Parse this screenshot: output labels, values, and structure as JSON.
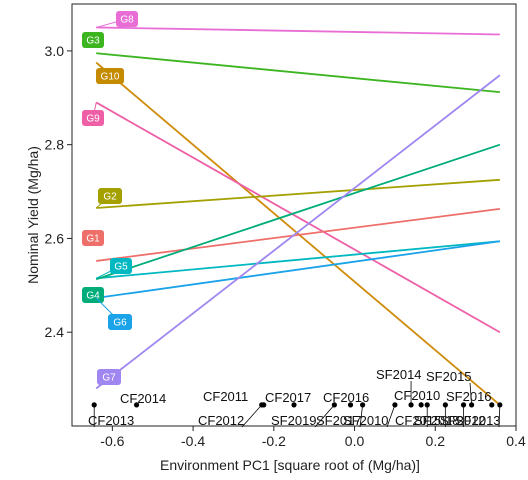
{
  "chart_data": {
    "type": "line",
    "xlabel": "Environment PC1 [square root of  (Mg/ha)]",
    "ylabel": "Nominal Yield (Mg/ha)",
    "xlim": [
      -0.7,
      0.4
    ],
    "ylim": [
      2.2,
      3.1
    ],
    "x_ticks": [
      -0.6,
      -0.4,
      -0.2,
      0.0,
      0.2,
      0.4
    ],
    "x_tick_labels": [
      "-0.6",
      "-0.4",
      "-0.2",
      "0.0",
      "0.2",
      "0.4"
    ],
    "y_ticks": [
      2.4,
      2.6,
      2.8,
      3.0
    ],
    "y_tick_labels": [
      "2.4",
      "2.6",
      "2.8",
      "3.0"
    ],
    "grid": false,
    "series": [
      {
        "name": "G8",
        "color": "#e86ed6",
        "x": [
          -0.64,
          0.36
        ],
        "y": [
          3.05,
          3.035
        ]
      },
      {
        "name": "G3",
        "color": "#3cb521",
        "x": [
          -0.64,
          0.36
        ],
        "y": [
          2.995,
          2.912
        ]
      },
      {
        "name": "G10",
        "color": "#cf8b0a",
        "x": [
          -0.64,
          0.36
        ],
        "y": [
          2.975,
          2.245
        ]
      },
      {
        "name": "G9",
        "color": "#ee5fa6",
        "x": [
          -0.64,
          0.36
        ],
        "y": [
          2.89,
          2.4
        ]
      },
      {
        "name": "G2",
        "color": "#a3a000",
        "x": [
          -0.64,
          0.36
        ],
        "y": [
          2.665,
          2.725
        ]
      },
      {
        "name": "G1",
        "color": "#ee6f6a",
        "x": [
          -0.64,
          0.36
        ],
        "y": [
          2.552,
          2.663
        ]
      },
      {
        "name": "G5",
        "color": "#00b8c1",
        "x": [
          -0.64,
          0.36
        ],
        "y": [
          2.515,
          2.594
        ]
      },
      {
        "name": "G4",
        "color": "#00ad7a",
        "x": [
          -0.64,
          0.36
        ],
        "y": [
          2.513,
          2.8
        ]
      },
      {
        "name": "G6",
        "color": "#1aa3e8",
        "x": [
          -0.64,
          0.36
        ],
        "y": [
          2.473,
          2.594
        ]
      },
      {
        "name": "G7",
        "color": "#9f86f0",
        "x": [
          -0.64,
          0.36
        ],
        "y": [
          2.28,
          2.948
        ]
      }
    ],
    "environments": [
      {
        "name": "CF2013",
        "x": -0.645
      },
      {
        "name": "CF2014",
        "x": -0.54
      },
      {
        "name": "CF2012",
        "x": -0.23
      },
      {
        "name": "CF2011",
        "x": -0.225
      },
      {
        "name": "CF2017",
        "x": -0.15
      },
      {
        "name": "SF2019",
        "x": -0.05
      },
      {
        "name": "CF2016",
        "x": -0.01
      },
      {
        "name": "SF2017",
        "x": 0.02
      },
      {
        "name": "SF2010",
        "x": 0.1
      },
      {
        "name": "SF2014",
        "x": 0.14
      },
      {
        "name": "CF2010",
        "x": 0.165
      },
      {
        "name": "CF2015",
        "x": 0.18
      },
      {
        "name": "SF2018",
        "x": 0.225
      },
      {
        "name": "SF2012",
        "x": 0.27
      },
      {
        "name": "SF2015",
        "x": 0.29
      },
      {
        "name": "SF2016",
        "x": 0.34
      },
      {
        "name": "SF2013",
        "x": 0.36
      }
    ],
    "environment_y": 2.245,
    "label_fills": {
      "G8": "#e86ed6",
      "G3": "#3cb521",
      "G10": "#c48a00",
      "G9": "#ee5fa6",
      "G2": "#a3a000",
      "G1": "#ee6f6a",
      "G5": "#00b8c1",
      "G4": "#00ad7a",
      "G6": "#1aa3e8",
      "G7": "#9f86f0"
    }
  }
}
